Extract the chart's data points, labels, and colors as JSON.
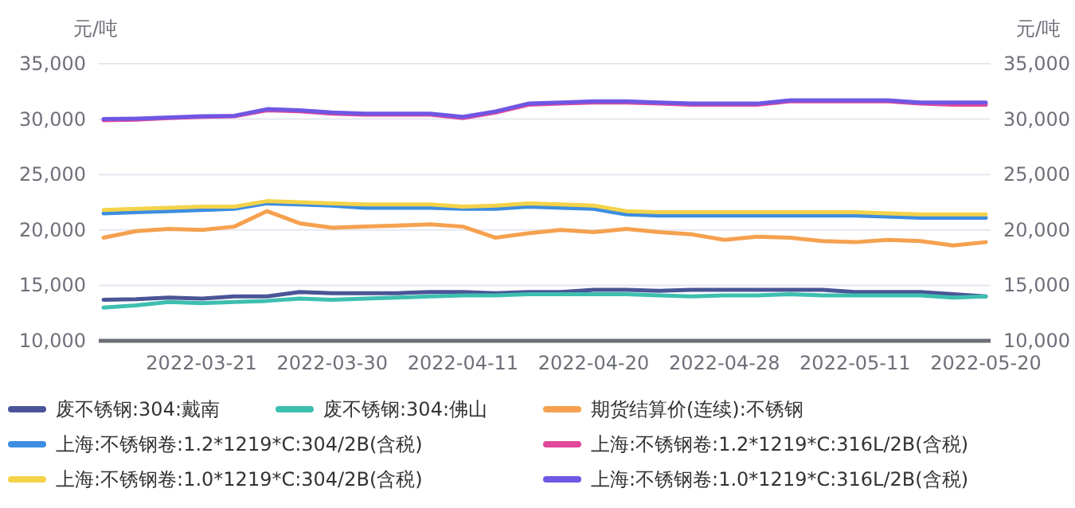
{
  "chart_data": {
    "type": "line",
    "ylabel": "元/吨",
    "y2label": "元/吨",
    "categories": [
      null,
      null,
      null,
      "2022-03-21",
      null,
      null,
      null,
      "2022-03-30",
      null,
      null,
      null,
      "2022-04-11",
      null,
      null,
      null,
      "2022-04-20",
      null,
      null,
      null,
      "2022-04-28",
      null,
      null,
      null,
      "2022-05-11",
      null,
      null,
      null,
      "2022-05-20"
    ],
    "ylim": [
      10000,
      35000
    ],
    "yticks": [
      {
        "value": 10000,
        "label": "10,000"
      },
      {
        "value": 15000,
        "label": "15,000"
      },
      {
        "value": 20000,
        "label": "20,000"
      },
      {
        "value": 25000,
        "label": "25,000"
      },
      {
        "value": 30000,
        "label": "30,000"
      },
      {
        "value": 35000,
        "label": "35,000"
      }
    ],
    "y2lim": [
      10000,
      35000
    ],
    "y2ticks": [
      {
        "value": 10000,
        "label": "10,000"
      },
      {
        "value": 15000,
        "label": "15,000"
      },
      {
        "value": 20000,
        "label": "20,000"
      },
      {
        "value": 25000,
        "label": "25,000"
      },
      {
        "value": 30000,
        "label": "30,000"
      },
      {
        "value": 35000,
        "label": "35,000"
      }
    ],
    "grid": "y",
    "legend": "bottom",
    "series": [
      {
        "name": "废不锈钢:304:戴南",
        "color": "#4a5597",
        "values": [
          13700,
          13750,
          13900,
          13800,
          14000,
          14000,
          14400,
          14300,
          14300,
          14300,
          14400,
          14400,
          14300,
          14400,
          14400,
          14600,
          14600,
          14500,
          14600,
          14600,
          14600,
          14600,
          14600,
          14400,
          14400,
          14400,
          14200,
          14000
        ]
      },
      {
        "name": "废不锈钢:304:佛山",
        "color": "#3dbfb0",
        "values": [
          13000,
          13200,
          13500,
          13400,
          13500,
          13600,
          13800,
          13700,
          13800,
          13900,
          14000,
          14100,
          14100,
          14200,
          14200,
          14200,
          14200,
          14100,
          14000,
          14100,
          14100,
          14200,
          14100,
          14100,
          14100,
          14100,
          13900,
          14000
        ]
      },
      {
        "name": "期货结算价(连续):不锈钢",
        "color": "#f5a14f",
        "values": [
          19300,
          19900,
          20100,
          20000,
          20300,
          21700,
          20600,
          20200,
          20300,
          20400,
          20500,
          20300,
          19300,
          19700,
          20000,
          19800,
          20100,
          19800,
          19600,
          19100,
          19400,
          19300,
          19000,
          18900,
          19100,
          19000,
          18600,
          18900
        ]
      },
      {
        "name": "上海:不锈钢卷:1.2*1219*C:304/2B(含税)",
        "color": "#3d8de0",
        "values": [
          21500,
          21600,
          21700,
          21800,
          21900,
          22400,
          22300,
          22200,
          22000,
          22000,
          22000,
          21900,
          21900,
          22100,
          22000,
          21900,
          21400,
          21300,
          21300,
          21300,
          21300,
          21300,
          21300,
          21300,
          21200,
          21100,
          21100,
          21100
        ]
      },
      {
        "name": "上海:不锈钢卷:1.2*1219*C:316L/2B(含税)",
        "color": "#e0489a",
        "values": [
          29900,
          29950,
          30100,
          30200,
          30250,
          30800,
          30700,
          30500,
          30400,
          30400,
          30400,
          30100,
          30600,
          31300,
          31400,
          31500,
          31500,
          31400,
          31300,
          31300,
          31300,
          31600,
          31600,
          31600,
          31600,
          31400,
          31300,
          31300
        ]
      },
      {
        "name": "上海:不锈钢卷:1.0*1219*C:304/2B(含税)",
        "color": "#f4d34a",
        "values": [
          21800,
          21900,
          22000,
          22100,
          22100,
          22600,
          22500,
          22400,
          22300,
          22300,
          22300,
          22100,
          22200,
          22400,
          22300,
          22200,
          21700,
          21600,
          21600,
          21600,
          21600,
          21600,
          21600,
          21600,
          21500,
          21400,
          21400,
          21400
        ]
      },
      {
        "name": "上海:不锈钢卷:1.0*1219*C:316L/2B(含税)",
        "color": "#6f56e4",
        "values": [
          30000,
          30050,
          30150,
          30250,
          30300,
          30900,
          30800,
          30600,
          30500,
          30500,
          30500,
          30200,
          30700,
          31400,
          31500,
          31600,
          31600,
          31500,
          31400,
          31400,
          31400,
          31700,
          31700,
          31700,
          31700,
          31500,
          31500,
          31500
        ]
      }
    ]
  }
}
